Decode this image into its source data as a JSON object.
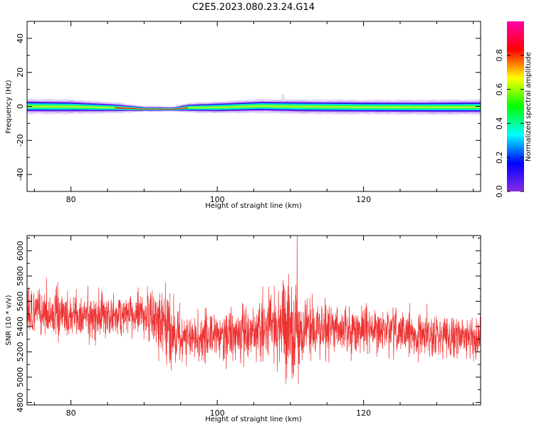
{
  "title": "C2E5.2023.080.23.24.G14",
  "chart_data": [
    {
      "type": "heatmap",
      "panel": "spectrogram",
      "xlabel": "Height of straight line (km)",
      "ylabel": "Frequency (Hz)",
      "xlim": [
        74,
        136
      ],
      "ylim": [
        -50,
        50
      ],
      "xticks": [
        80,
        100,
        120
      ],
      "yticks": [
        -40,
        -20,
        0,
        20,
        40
      ],
      "colorbar": {
        "label": "Normalized spectral amplitude",
        "range": [
          0,
          1
        ],
        "ticks": [
          "0.0",
          "0.2",
          "0.4",
          "0.6",
          "0.8"
        ],
        "colormap": [
          "#8a2be2",
          "#0000ff",
          "#00ffff",
          "#00ff00",
          "#ffff00",
          "#ff0000",
          "#ff00aa"
        ]
      },
      "band": [
        {
          "x": 74,
          "center": 0.0,
          "width": 3.8
        },
        {
          "x": 80,
          "center": -0.2,
          "width": 3.6
        },
        {
          "x": 86,
          "center": -0.8,
          "width": 2.6
        },
        {
          "x": 90,
          "center": -1.5,
          "width": 1.4
        },
        {
          "x": 94,
          "center": -1.6,
          "width": 1.2
        },
        {
          "x": 96,
          "center": -0.8,
          "width": 2.4
        },
        {
          "x": 100,
          "center": -0.6,
          "width": 3.0
        },
        {
          "x": 106,
          "center": 0.2,
          "width": 3.4
        },
        {
          "x": 112,
          "center": -0.2,
          "width": 3.6
        },
        {
          "x": 120,
          "center": -0.4,
          "width": 3.6
        },
        {
          "x": 128,
          "center": -0.5,
          "width": 3.6
        },
        {
          "x": 136,
          "center": -0.4,
          "width": 3.8
        }
      ],
      "peak_region": {
        "x_start": 86,
        "x_end": 96,
        "amplitude": 0.9
      }
    },
    {
      "type": "line",
      "panel": "snr",
      "xlabel": "Height of straight line (km)",
      "ylabel": "SNR (10 * v/v)",
      "xlim": [
        74,
        136
      ],
      "ylim": [
        4780,
        6120
      ],
      "xticks": [
        80,
        100,
        120
      ],
      "yticks": [
        4800,
        5000,
        5200,
        5400,
        5600,
        5800,
        6000
      ],
      "color": "#ee3333",
      "envelope": [
        {
          "x": 74,
          "mean": 5520,
          "spread": 170
        },
        {
          "x": 80,
          "mean": 5480,
          "spread": 170
        },
        {
          "x": 86,
          "mean": 5490,
          "spread": 150
        },
        {
          "x": 90,
          "mean": 5500,
          "spread": 150
        },
        {
          "x": 93,
          "mean": 5380,
          "spread": 260
        },
        {
          "x": 96,
          "mean": 5300,
          "spread": 160
        },
        {
          "x": 100,
          "mean": 5330,
          "spread": 170
        },
        {
          "x": 104,
          "mean": 5350,
          "spread": 190
        },
        {
          "x": 108,
          "mean": 5430,
          "spread": 260
        },
        {
          "x": 110,
          "mean": 5380,
          "spread": 400
        },
        {
          "x": 112,
          "mean": 5380,
          "spread": 200
        },
        {
          "x": 120,
          "mean": 5380,
          "spread": 160
        },
        {
          "x": 128,
          "mean": 5340,
          "spread": 150
        },
        {
          "x": 136,
          "mean": 5320,
          "spread": 140
        }
      ]
    }
  ]
}
